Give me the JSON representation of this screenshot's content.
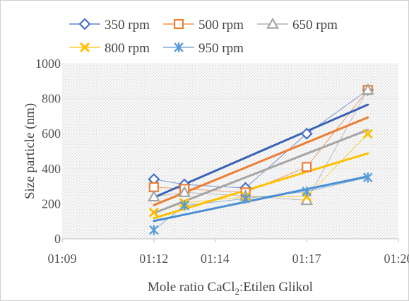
{
  "chart_data": {
    "type": "scatter",
    "title": "",
    "xlabel": "Mole ratio CaCl",
    "xlabel_sub": "2",
    "xlabel_rest": ":Etilen Glikol",
    "ylabel": "Size particle (nm)",
    "xlim": [
      "01:09",
      "01:20"
    ],
    "ylim": [
      0,
      1000
    ],
    "x_ticks": [
      "01:09",
      "01:12",
      "01:14",
      "01:17",
      "01:20"
    ],
    "y_ticks": [
      0,
      200,
      400,
      600,
      800,
      1000
    ],
    "grid": "dotted-hatch plot area",
    "legend_position": "top",
    "x": [
      "01:12",
      "01:13",
      "01:15",
      "01:17",
      "01:19"
    ],
    "series": [
      {
        "name": "350 rpm",
        "color": "#4472C4",
        "trend_color": "#3A63B8",
        "marker": "diamond",
        "values": [
          340,
          310,
          290,
          600,
          850
        ]
      },
      {
        "name": "500 rpm",
        "color": "#ED7D31",
        "trend_color": "#ED7D31",
        "marker": "square",
        "values": [
          295,
          285,
          265,
          410,
          850
        ]
      },
      {
        "name": "650 rpm",
        "color": "#A5A5A5",
        "trend_color": "#A5A5A5",
        "marker": "triangle",
        "values": [
          240,
          265,
          245,
          220,
          850
        ]
      },
      {
        "name": "800 rpm",
        "color": "#FFC000",
        "trend_color": "#FFC000",
        "marker": "x",
        "values": [
          150,
          205,
          240,
          240,
          600
        ]
      },
      {
        "name": "950 rpm",
        "color": "#5B9BD5",
        "trend_color": "#4A8FD4",
        "marker": "star",
        "values": [
          50,
          190,
          230,
          270,
          350
        ]
      }
    ]
  }
}
